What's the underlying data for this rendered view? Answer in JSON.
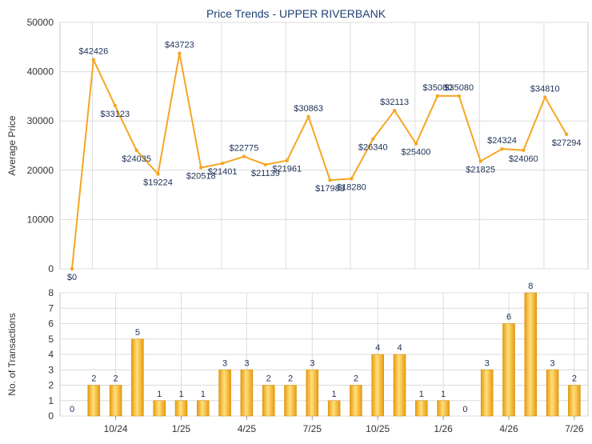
{
  "chart_data": [
    {
      "type": "line",
      "title": "Price Trends - UPPER RIVERBANK",
      "ylabel": "Average Price",
      "ylim": [
        0,
        50000
      ],
      "yticks": [
        "0",
        "10000",
        "20000",
        "30000",
        "40000",
        "50000"
      ],
      "grid": true,
      "color": "#f5a623",
      "x": [
        "2024-07",
        "2024-08",
        "2024-09",
        "2024-10",
        "2024-11",
        "2024-12",
        "2025-01",
        "2025-02",
        "2025-03",
        "2025-04",
        "2025-05",
        "2025-06",
        "2025-07",
        "2025-08",
        "2025-09",
        "2025-10",
        "2025-11",
        "2025-12",
        "2026-01",
        "2026-02",
        "2026-03",
        "2026-04",
        "2026-05",
        "2026-06",
        "2026-07"
      ],
      "values": [
        0,
        42426,
        33123,
        24035,
        19224,
        43723,
        20518,
        21401,
        22775,
        21139,
        21961,
        30863,
        17983,
        18280,
        26340,
        32113,
        25400,
        35080,
        35080,
        21825,
        24324,
        24060,
        34810,
        27294,
        null
      ],
      "labels": [
        "$0",
        "$42426",
        "$33123",
        "$24035",
        "$19224",
        "$43723",
        "$20518",
        "$21401",
        "$22775",
        "$21139",
        "$21961",
        "$30863",
        "$17983",
        "$18280",
        "$26340",
        "$32113",
        "$25400",
        "$35080",
        "$35080",
        "$21825",
        "$24324",
        "$24060",
        "$34810",
        "$27294"
      ]
    },
    {
      "type": "bar",
      "ylabel": "No. of Transactions",
      "ylim": [
        0,
        8
      ],
      "yticks": [
        "0",
        "1",
        "2",
        "3",
        "4",
        "5",
        "6",
        "7",
        "8"
      ],
      "grid": true,
      "color": "#f5b21d",
      "categories": [
        "2024-08",
        "2024-09",
        "2024-10",
        "2024-11",
        "2024-12",
        "2025-01",
        "2025-02",
        "2025-03",
        "2025-04",
        "2025-05",
        "2025-06",
        "2025-07",
        "2025-08",
        "2025-09",
        "2025-10",
        "2025-11",
        "2025-12",
        "2026-01",
        "2026-02",
        "2026-03",
        "2026-04",
        "2026-05",
        "2026-06",
        "2026-07"
      ],
      "values": [
        0,
        2,
        2,
        5,
        1,
        1,
        1,
        3,
        3,
        2,
        2,
        3,
        1,
        2,
        4,
        4,
        1,
        1,
        0,
        3,
        6,
        8,
        3,
        2
      ],
      "xticks": [
        "10/24",
        "1/25",
        "4/25",
        "7/25",
        "10/25",
        "1/26",
        "4/26",
        "7/26"
      ]
    }
  ]
}
